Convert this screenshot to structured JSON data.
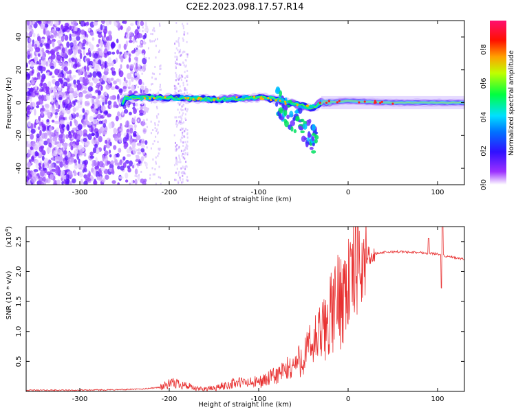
{
  "title": "C2E2.2023.098.17.57.R14",
  "chart_data": [
    {
      "type": "heatmap",
      "name": "spectrogram",
      "xlabel": "Height of straight line (km)",
      "ylabel": "Frequency (Hz)",
      "xlim": [
        -360,
        130
      ],
      "ylim": [
        -50,
        50
      ],
      "xticks": [
        -300,
        -200,
        -100,
        0,
        100
      ],
      "yticks": [
        -40,
        -20,
        0,
        20,
        40
      ],
      "xtick_labels": [
        "-300",
        "-200",
        "-100",
        "0",
        "100"
      ],
      "ytick_labels": [
        "-40",
        "-20",
        "0",
        "20",
        "40"
      ],
      "colorbar": {
        "label": "Normalized spectral amplitude",
        "range": [
          0,
          1
        ],
        "ticks": [
          0.0,
          0.2,
          0.4,
          0.6,
          0.8
        ],
        "tick_labels": [
          "0.0",
          "0.2",
          "0.4",
          "0.6",
          "0.8"
        ],
        "colors": [
          "#ffffff",
          "#8000ff",
          "#0000ff",
          "#00ffff",
          "#00ff00",
          "#ffff00",
          "#ff0000",
          "#ff0080"
        ]
      },
      "noise_region_km": [
        -360,
        -240
      ],
      "noise_streak_km": [
        -195,
        -180
      ],
      "signal_track": [
        {
          "x": -250,
          "y": 3
        },
        {
          "x": -200,
          "y": 3
        },
        {
          "x": -150,
          "y": 2
        },
        {
          "x": -100,
          "y": 3
        },
        {
          "x": -80,
          "y": 2
        },
        {
          "x": -70,
          "y": 0
        },
        {
          "x": -50,
          "y": -2
        },
        {
          "x": -40,
          "y": -3
        },
        {
          "x": -30,
          "y": 0
        },
        {
          "x": 0,
          "y": 1
        },
        {
          "x": 50,
          "y": 0
        },
        {
          "x": 130,
          "y": 0
        }
      ]
    },
    {
      "type": "line",
      "name": "snr",
      "xlabel": "Height of straight line (km)",
      "ylabel": "SNR (10 * v/v)",
      "yscale_label": "(x10",
      "yscale_exp": "4",
      "yscale_close": ")",
      "xlim": [
        -360,
        130
      ],
      "ylim": [
        0,
        2.75
      ],
      "xticks": [
        -300,
        -200,
        -100,
        0,
        100
      ],
      "yticks": [
        0.5,
        1.0,
        1.5,
        2.0,
        2.5
      ],
      "xtick_labels": [
        "-300",
        "-200",
        "-100",
        "0",
        "100"
      ],
      "ytick_labels": [
        "0.5",
        "1.0",
        "1.5",
        "2.0",
        "2.5"
      ],
      "line_color": "#e83030",
      "series": [
        {
          "name": "SNR",
          "x": [
            -360,
            -300,
            -250,
            -230,
            -210,
            -200,
            -190,
            -180,
            -170,
            -150,
            -130,
            -120,
            -110,
            -100,
            -90,
            -80,
            -70,
            -60,
            -50,
            -40,
            -30,
            -25,
            -20,
            -15,
            -10,
            -5,
            0,
            5,
            10,
            20,
            30,
            40,
            50,
            60,
            70,
            80,
            90,
            100,
            105,
            110,
            120,
            130
          ],
          "y": [
            0.02,
            0.02,
            0.03,
            0.04,
            0.07,
            0.12,
            0.14,
            0.09,
            0.04,
            0.05,
            0.13,
            0.15,
            0.14,
            0.16,
            0.2,
            0.27,
            0.34,
            0.44,
            0.58,
            0.78,
            0.95,
            1.1,
            1.25,
            1.4,
            1.55,
            1.68,
            1.8,
            1.95,
            2.12,
            2.26,
            2.3,
            2.32,
            2.33,
            2.33,
            2.32,
            2.32,
            2.3,
            2.3,
            2.27,
            2.25,
            2.23,
            2.2
          ]
        }
      ]
    }
  ]
}
